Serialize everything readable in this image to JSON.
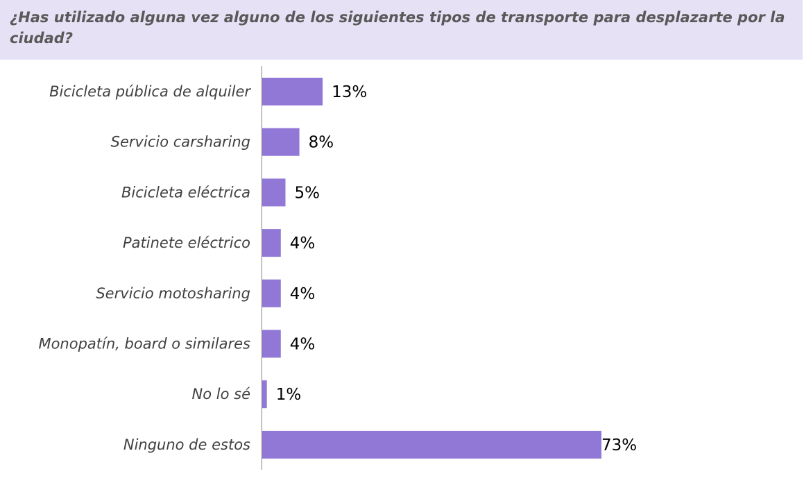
{
  "title": "¿Has utilizado alguna vez alguno de los siguientes tipos de transporte para desplazarte por la ciudad?",
  "colors": {
    "bar": "#9178d7",
    "title_band": "#e6e1f5",
    "axis": "#7f7f7f"
  },
  "chart_data": {
    "type": "bar",
    "orientation": "horizontal",
    "categories": [
      "Bicicleta pública de alquiler",
      "Servicio carsharing",
      "Bicicleta eléctrica",
      "Patinete eléctrico",
      "Servicio motosharing",
      "Monopatín, board o similares",
      "No lo sé",
      "Ninguno de estos"
    ],
    "values": [
      13,
      8,
      5,
      4,
      4,
      4,
      1,
      73
    ],
    "value_labels": [
      "13%",
      "8%",
      "5%",
      "4%",
      "4%",
      "4%",
      "1%",
      "73%"
    ],
    "unit": "%",
    "xlim": [
      0,
      100
    ],
    "grid": false,
    "legend": "none"
  }
}
